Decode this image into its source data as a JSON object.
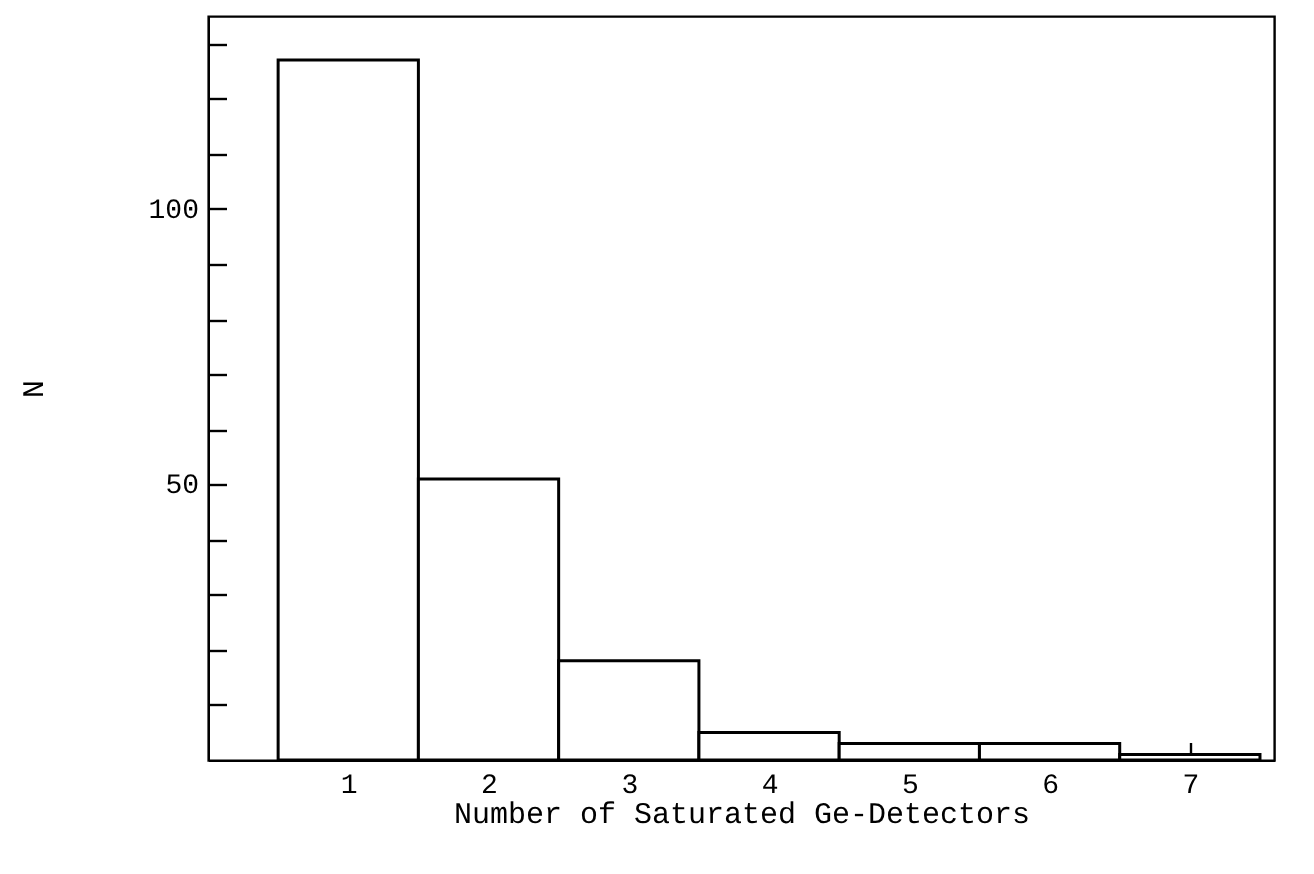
{
  "chart_data": {
    "type": "histogram",
    "xlabel": "Number of Saturated Ge-Detectors",
    "ylabel": "N",
    "bins": [
      0.5,
      1.5,
      2.5,
      3.5,
      4.5,
      5.5,
      6.5,
      7.5
    ],
    "values": [
      127,
      51,
      18,
      5,
      3,
      3,
      1
    ],
    "color": "#ffffff",
    "xlim": [
      0,
      7.6
    ],
    "xticks": [
      1,
      2,
      3,
      4,
      5,
      6,
      7
    ],
    "ylim": [
      0,
      135
    ],
    "yticks": [
      {
        "value": 10,
        "label": null
      },
      {
        "value": 20,
        "label": null
      },
      {
        "value": 30,
        "label": null
      },
      {
        "value": 40,
        "label": null
      },
      50,
      {
        "value": 60,
        "label": null
      },
      {
        "value": 70,
        "label": null
      },
      {
        "value": 80,
        "label": null
      },
      {
        "value": 90,
        "label": null
      },
      100,
      {
        "value": 110,
        "label": null
      },
      {
        "value": 120,
        "label": null
      },
      {
        "value": 130,
        "label": null
      }
    ],
    "grid": false
  }
}
